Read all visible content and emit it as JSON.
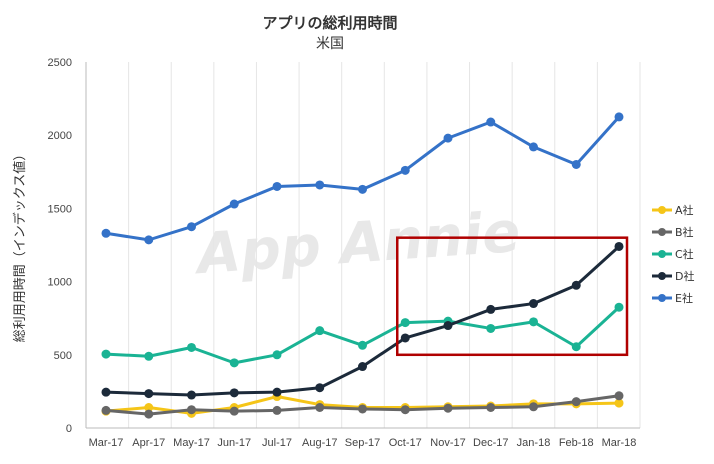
{
  "chart_data": {
    "type": "line",
    "title": "アプリの総利用時間",
    "subtitle": "米国",
    "ylabel": "総利用用時間（インデックス値）",
    "watermark": "App Annie",
    "categories": [
      "Mar-17",
      "Apr-17",
      "May-17",
      "Jun-17",
      "Jul-17",
      "Aug-17",
      "Sep-17",
      "Oct-17",
      "Nov-17",
      "Dec-17",
      "Jan-18",
      "Feb-18",
      "Mar-18"
    ],
    "ylim": [
      0,
      2500
    ],
    "yticks": [
      0,
      500,
      1000,
      1500,
      2000,
      2500
    ],
    "grid": "vertical",
    "legend_position": "right",
    "highlight_box": {
      "from_category": "Oct-17",
      "to_category": "Mar-18",
      "y_range": [
        500,
        1300
      ],
      "color": "#b00000"
    },
    "series": [
      {
        "name": "A社",
        "color": "#f5c518",
        "values": [
          115,
          140,
          100,
          140,
          215,
          160,
          140,
          140,
          145,
          150,
          165,
          165,
          170
        ]
      },
      {
        "name": "B社",
        "color": "#666666",
        "values": [
          120,
          95,
          125,
          115,
          120,
          140,
          130,
          125,
          135,
          140,
          145,
          180,
          220
        ]
      },
      {
        "name": "C社",
        "color": "#1ab394",
        "values": [
          505,
          490,
          550,
          445,
          500,
          665,
          565,
          720,
          730,
          680,
          725,
          555,
          825
        ]
      },
      {
        "name": "D社",
        "color": "#1c2a3a",
        "values": [
          245,
          235,
          225,
          240,
          245,
          275,
          420,
          615,
          700,
          810,
          850,
          975,
          1240
        ]
      },
      {
        "name": "E社",
        "color": "#3472c8",
        "values": [
          1330,
          1285,
          1375,
          1530,
          1650,
          1660,
          1630,
          1760,
          1980,
          2090,
          1920,
          1800,
          2125
        ]
      }
    ]
  }
}
